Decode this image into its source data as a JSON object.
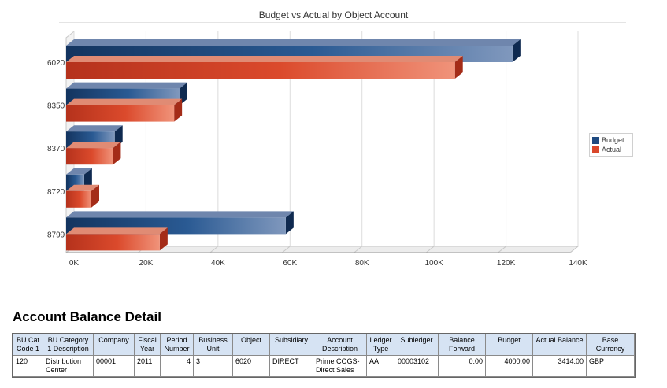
{
  "chart_data": {
    "type": "bar",
    "orientation": "horizontal",
    "title": "Budget vs Actual by Object Account",
    "categories": [
      "6020",
      "8350",
      "8370",
      "8720",
      "8799"
    ],
    "series": [
      {
        "name": "Budget",
        "values": [
          124000,
          31500,
          13500,
          5000,
          61000
        ],
        "color": "#1f4a80"
      },
      {
        "name": "Actual",
        "values": [
          108000,
          30000,
          13000,
          7000,
          26000
        ],
        "color": "#d9472b"
      }
    ],
    "xlim": [
      0,
      140000
    ],
    "ticks": [
      {
        "value": 0,
        "label": "0K"
      },
      {
        "value": 20000,
        "label": "20K"
      },
      {
        "value": 40000,
        "label": "40K"
      },
      {
        "value": 60000,
        "label": "60K"
      },
      {
        "value": 80000,
        "label": "80K"
      },
      {
        "value": 100000,
        "label": "100K"
      },
      {
        "value": 120000,
        "label": "120K"
      },
      {
        "value": 140000,
        "label": "140K"
      }
    ],
    "grid": true,
    "legend": "right"
  },
  "legend": {
    "budget_label": "Budget",
    "actual_label": "Actual",
    "budget_color": "#1f4a80",
    "actual_color": "#d9472b"
  },
  "detail": {
    "title": "Account Balance Detail",
    "columns": [
      "BU Cat Code 1",
      "BU Category 1 Description",
      "Company",
      "Fiscal Year",
      "Period Number",
      "Business Unit",
      "Object",
      "Subsidiary",
      "Account Description",
      "Ledger Type",
      "Subledger",
      "Balance Forward",
      "Budget",
      "Actual Balance",
      "Base Currency"
    ],
    "rows": [
      [
        "120",
        "Distribution Center",
        "00001",
        "2011",
        "4",
        "3",
        "6020",
        "DIRECT",
        "Prime COGS-Direct Sales",
        "AA",
        "00003102",
        "0.00",
        "4000.00",
        "3414.00",
        "GBP"
      ]
    ]
  }
}
